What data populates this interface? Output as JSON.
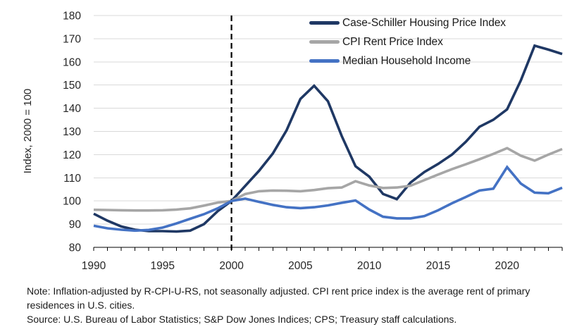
{
  "chart_data": {
    "type": "line",
    "title": "",
    "xlabel": "",
    "ylabel": "Index, 2000 = 100",
    "xlim": [
      1990,
      2024
    ],
    "ylim": [
      80,
      180
    ],
    "y_ticks": [
      80,
      90,
      100,
      110,
      120,
      130,
      140,
      150,
      160,
      170,
      180
    ],
    "x_tick_label_years": [
      1990,
      1995,
      2000,
      2005,
      2010,
      2015,
      2020
    ],
    "x_minor_tick_step": 1,
    "grid": "horizontal",
    "gridline_color": "#D9D9D9",
    "axis_color": "#000000",
    "text_color": "#262626",
    "legend_position": "top-right-inside",
    "reference_line": {
      "x": 2000,
      "style": "dashed",
      "color": "#000000"
    },
    "x": [
      1990,
      1991,
      1992,
      1993,
      1994,
      1995,
      1996,
      1997,
      1998,
      1999,
      2000,
      2001,
      2002,
      2003,
      2004,
      2005,
      2006,
      2007,
      2008,
      2009,
      2010,
      2011,
      2012,
      2013,
      2014,
      2015,
      2016,
      2017,
      2018,
      2019,
      2020,
      2021,
      2022,
      2023,
      2024
    ],
    "series": [
      {
        "name": "Case-Schiller Housing Price Index",
        "color": "#1F3864",
        "values": [
          94.5,
          91.5,
          89,
          87.6,
          87,
          87,
          86.8,
          87.2,
          90,
          95.6,
          100,
          106.5,
          113,
          120.5,
          130.5,
          144,
          149.7,
          143,
          128,
          115,
          110.5,
          103,
          100.8,
          108,
          112.5,
          116,
          120,
          125.5,
          132,
          135,
          139.5,
          152,
          167,
          165.3,
          163.4
        ]
      },
      {
        "name": "CPI Rent Price Index",
        "color": "#A6A6A6",
        "values": [
          96.2,
          96.1,
          96,
          95.9,
          95.9,
          96,
          96.3,
          96.8,
          98,
          99.3,
          100,
          103,
          104.2,
          104.5,
          104.4,
          104.2,
          104.7,
          105.5,
          105.8,
          108.5,
          106.7,
          105.6,
          105.8,
          106.6,
          109,
          111.4,
          113.7,
          115.8,
          118,
          120.3,
          122.8,
          119.5,
          117.4,
          120,
          122.4
        ]
      },
      {
        "name": "Median Household Income",
        "color": "#4472C4",
        "values": [
          89.3,
          88.2,
          87.6,
          87.2,
          87.5,
          88.5,
          90.3,
          92.3,
          94.3,
          96.8,
          100,
          101,
          99.6,
          98.3,
          97.3,
          96.9,
          97.3,
          98.1,
          99.2,
          100.2,
          96.3,
          93.2,
          92.5,
          92.5,
          93.5,
          96,
          99,
          101.7,
          104.5,
          105.3,
          114.6,
          107.5,
          103.6,
          103.3,
          105.7
        ]
      }
    ]
  },
  "notes": {
    "note": "Note: Inflation-adjusted by R-CPI-U-RS, not seasonally adjusted. CPI rent price index is the average rent of primary residences in U.S. cities.",
    "source": "Source: U.S. Bureau of Labor Statistics; S&P Dow Jones Indices; CPS; Treasury staff calculations."
  }
}
